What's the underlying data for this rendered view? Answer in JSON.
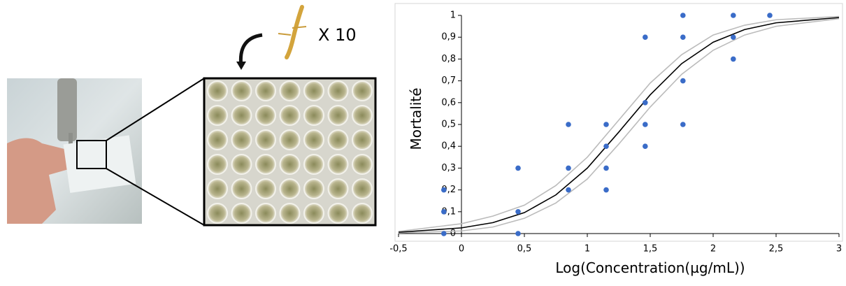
{
  "annotation": "X 10",
  "chart_data": {
    "type": "scatter",
    "xlabel": "Log(Concentration(µg/mL))",
    "ylabel": "Mortalité",
    "xlim": [
      -0.5,
      3
    ],
    "ylim": [
      0,
      1
    ],
    "xticks": [
      {
        "value": -0.5,
        "label": "-0,5"
      },
      0,
      {
        "value": 0.5,
        "label": "0,5"
      },
      1,
      {
        "value": 1.5,
        "label": "1,5"
      },
      2,
      {
        "value": 2.5,
        "label": "2,5"
      },
      3
    ],
    "yticks": [
      0,
      {
        "value": 0.1,
        "label": "0,1"
      },
      {
        "value": 0.2,
        "label": "0,2"
      },
      {
        "value": 0.3,
        "label": "0,3"
      },
      {
        "value": 0.4,
        "label": "0,4"
      },
      {
        "value": 0.5,
        "label": "0,5"
      },
      {
        "value": 0.6,
        "label": "0,6"
      },
      {
        "value": 0.7,
        "label": "0,7"
      },
      {
        "value": 0.8,
        "label": "0,8"
      },
      {
        "value": 0.9,
        "label": "0,9"
      },
      1
    ],
    "series": [
      {
        "style": "points",
        "color": "#3a6cc8",
        "x": [
          -0.14,
          -0.14,
          -0.14,
          0.45,
          0.45,
          0.45,
          0.85,
          0.85,
          0.85,
          1.15,
          1.15,
          1.15,
          1.15,
          1.46,
          1.46,
          1.46,
          1.46,
          1.76,
          1.76,
          1.76,
          1.76,
          2.16,
          2.16,
          2.16,
          2.45
        ],
        "values": [
          0,
          0.1,
          0.2,
          0,
          0.1,
          0.3,
          0.2,
          0.3,
          0.5,
          0.2,
          0.3,
          0.4,
          0.5,
          0.4,
          0.5,
          0.6,
          0.9,
          0.5,
          0.7,
          0.9,
          1,
          0.8,
          0.9,
          1,
          1
        ]
      },
      {
        "style": "line",
        "color": "#bbbbbb",
        "x": [
          -0.5,
          0,
          0.25,
          0.5,
          0.75,
          1,
          1.25,
          1.5,
          1.75,
          2,
          2.25,
          2.5,
          3
        ],
        "values": [
          0.01,
          0.045,
          0.08,
          0.13,
          0.22,
          0.35,
          0.52,
          0.69,
          0.82,
          0.91,
          0.955,
          0.98,
          0.995
        ]
      },
      {
        "style": "line",
        "color": "#bbbbbb",
        "x": [
          -0.5,
          0,
          0.25,
          0.5,
          0.75,
          1,
          1.25,
          1.5,
          1.75,
          2,
          2.25,
          2.5,
          3
        ],
        "values": [
          0.003,
          0.012,
          0.03,
          0.07,
          0.14,
          0.25,
          0.41,
          0.58,
          0.73,
          0.84,
          0.91,
          0.95,
          0.985
        ]
      },
      {
        "style": "line",
        "color": "#000000",
        "x": [
          -0.5,
          0,
          0.25,
          0.5,
          0.75,
          1,
          1.25,
          1.5,
          1.75,
          2,
          2.25,
          2.5,
          3
        ],
        "values": [
          0.006,
          0.026,
          0.05,
          0.096,
          0.177,
          0.3,
          0.465,
          0.636,
          0.779,
          0.877,
          0.935,
          0.966,
          0.99
        ]
      }
    ]
  }
}
